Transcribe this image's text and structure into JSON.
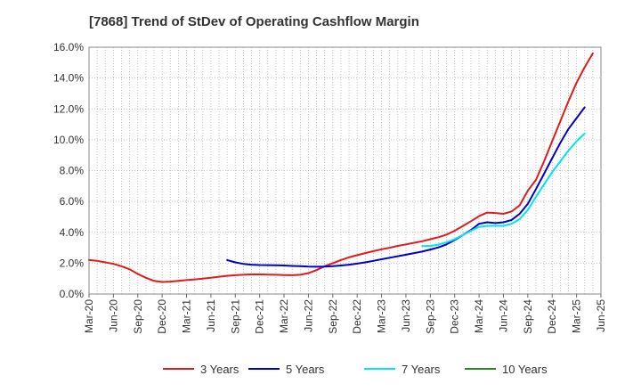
{
  "chart_data": {
    "type": "line",
    "title": "[7868]  Trend of StDev of Operating Cashflow Margin",
    "xlabel": "",
    "ylabel": "",
    "ylim": [
      0,
      16
    ],
    "yticks": [
      "0.0%",
      "2.0%",
      "4.0%",
      "6.0%",
      "8.0%",
      "10.0%",
      "12.0%",
      "14.0%",
      "16.0%"
    ],
    "xticks": [
      "Mar-20",
      "Jun-20",
      "Sep-20",
      "Dec-20",
      "Mar-21",
      "Jun-21",
      "Sep-21",
      "Dec-21",
      "Mar-22",
      "Jun-22",
      "Sep-22",
      "Dec-22",
      "Mar-23",
      "Jun-23",
      "Sep-23",
      "Dec-23",
      "Mar-24",
      "Jun-24",
      "Sep-24",
      "Dec-24",
      "Mar-25",
      "Jun-25"
    ],
    "grid": true,
    "legend_position": "bottom",
    "series": [
      {
        "name": "3 Years",
        "color": "#e31a1c",
        "points": [
          [
            "Mar-20",
            2.2
          ],
          [
            "Apr-20",
            2.15
          ],
          [
            "May-20",
            2.05
          ],
          [
            "Jun-20",
            1.95
          ],
          [
            "Jul-20",
            1.8
          ],
          [
            "Aug-20",
            1.6
          ],
          [
            "Sep-20",
            1.3
          ],
          [
            "Oct-20",
            1.05
          ],
          [
            "Nov-20",
            0.85
          ],
          [
            "Dec-20",
            0.78
          ],
          [
            "Jan-21",
            0.8
          ],
          [
            "Feb-21",
            0.85
          ],
          [
            "Mar-21",
            0.9
          ],
          [
            "Apr-21",
            0.95
          ],
          [
            "May-21",
            1.0
          ],
          [
            "Jun-21",
            1.05
          ],
          [
            "Jul-21",
            1.12
          ],
          [
            "Aug-21",
            1.18
          ],
          [
            "Sep-21",
            1.22
          ],
          [
            "Oct-21",
            1.25
          ],
          [
            "Nov-21",
            1.27
          ],
          [
            "Dec-21",
            1.27
          ],
          [
            "Jan-22",
            1.26
          ],
          [
            "Feb-22",
            1.25
          ],
          [
            "Mar-22",
            1.23
          ],
          [
            "Apr-22",
            1.22
          ],
          [
            "May-22",
            1.25
          ],
          [
            "Jun-22",
            1.35
          ],
          [
            "Jul-22",
            1.55
          ],
          [
            "Aug-22",
            1.8
          ],
          [
            "Sep-22",
            2.0
          ],
          [
            "Oct-22",
            2.2
          ],
          [
            "Nov-22",
            2.38
          ],
          [
            "Dec-22",
            2.52
          ],
          [
            "Jan-23",
            2.65
          ],
          [
            "Feb-23",
            2.78
          ],
          [
            "Mar-23",
            2.9
          ],
          [
            "Apr-23",
            3.0
          ],
          [
            "May-23",
            3.12
          ],
          [
            "Jun-23",
            3.22
          ],
          [
            "Jul-23",
            3.32
          ],
          [
            "Aug-23",
            3.42
          ],
          [
            "Sep-23",
            3.55
          ],
          [
            "Oct-23",
            3.68
          ],
          [
            "Nov-23",
            3.85
          ],
          [
            "Dec-23",
            4.1
          ],
          [
            "Jan-24",
            4.4
          ],
          [
            "Feb-24",
            4.72
          ],
          [
            "Mar-24",
            5.05
          ],
          [
            "Apr-24",
            5.28
          ],
          [
            "May-24",
            5.25
          ],
          [
            "Jun-24",
            5.2
          ],
          [
            "Jul-24",
            5.35
          ],
          [
            "Aug-24",
            5.75
          ],
          [
            "Sep-24",
            6.7
          ],
          [
            "Oct-24",
            7.4
          ],
          [
            "Nov-24",
            8.6
          ],
          [
            "Dec-24",
            9.9
          ],
          [
            "Jan-25",
            11.2
          ],
          [
            "Feb-25",
            12.5
          ],
          [
            "Mar-25",
            13.7
          ],
          [
            "Apr-25",
            14.7
          ],
          [
            "May-25",
            15.6
          ]
        ]
      },
      {
        "name": "5 Years",
        "color": "#0000cc",
        "points": [
          [
            "Aug-21",
            2.2
          ],
          [
            "Sep-21",
            2.05
          ],
          [
            "Oct-21",
            1.95
          ],
          [
            "Nov-21",
            1.9
          ],
          [
            "Dec-21",
            1.88
          ],
          [
            "Jan-22",
            1.87
          ],
          [
            "Feb-22",
            1.86
          ],
          [
            "Mar-22",
            1.85
          ],
          [
            "Apr-22",
            1.82
          ],
          [
            "May-22",
            1.8
          ],
          [
            "Jun-22",
            1.78
          ],
          [
            "Jul-22",
            1.77
          ],
          [
            "Aug-22",
            1.78
          ],
          [
            "Sep-22",
            1.8
          ],
          [
            "Oct-22",
            1.85
          ],
          [
            "Nov-22",
            1.9
          ],
          [
            "Dec-22",
            1.97
          ],
          [
            "Jan-23",
            2.05
          ],
          [
            "Feb-23",
            2.15
          ],
          [
            "Mar-23",
            2.25
          ],
          [
            "Apr-23",
            2.35
          ],
          [
            "May-23",
            2.45
          ],
          [
            "Jun-23",
            2.55
          ],
          [
            "Jul-23",
            2.65
          ],
          [
            "Aug-23",
            2.75
          ],
          [
            "Sep-23",
            2.88
          ],
          [
            "Oct-23",
            3.02
          ],
          [
            "Nov-23",
            3.22
          ],
          [
            "Dec-23",
            3.5
          ],
          [
            "Jan-24",
            3.82
          ],
          [
            "Feb-24",
            4.15
          ],
          [
            "Mar-24",
            4.55
          ],
          [
            "Apr-24",
            4.65
          ],
          [
            "May-24",
            4.6
          ],
          [
            "Jun-24",
            4.65
          ],
          [
            "Jul-24",
            4.8
          ],
          [
            "Aug-24",
            5.2
          ],
          [
            "Sep-24",
            5.85
          ],
          [
            "Oct-24",
            6.8
          ],
          [
            "Nov-24",
            7.8
          ],
          [
            "Dec-24",
            8.8
          ],
          [
            "Jan-25",
            9.8
          ],
          [
            "Feb-25",
            10.7
          ],
          [
            "Mar-25",
            11.4
          ],
          [
            "Apr-25",
            12.1
          ]
        ]
      },
      {
        "name": "7 Years",
        "color": "#00e5ee",
        "points": [
          [
            "Aug-23",
            3.1
          ],
          [
            "Sep-23",
            3.12
          ],
          [
            "Oct-23",
            3.2
          ],
          [
            "Nov-23",
            3.35
          ],
          [
            "Dec-23",
            3.55
          ],
          [
            "Jan-24",
            3.82
          ],
          [
            "Feb-24",
            4.1
          ],
          [
            "Mar-24",
            4.35
          ],
          [
            "Apr-24",
            4.42
          ],
          [
            "May-24",
            4.42
          ],
          [
            "Jun-24",
            4.42
          ],
          [
            "Jul-24",
            4.55
          ],
          [
            "Aug-24",
            4.85
          ],
          [
            "Sep-24",
            5.45
          ],
          [
            "Oct-24",
            6.3
          ],
          [
            "Nov-24",
            7.1
          ],
          [
            "Dec-24",
            7.9
          ],
          [
            "Jan-25",
            8.6
          ],
          [
            "Feb-25",
            9.3
          ],
          [
            "Mar-25",
            9.9
          ],
          [
            "Apr-25",
            10.4
          ]
        ]
      },
      {
        "name": "10 Years",
        "color": "#228b22",
        "points": []
      }
    ]
  }
}
